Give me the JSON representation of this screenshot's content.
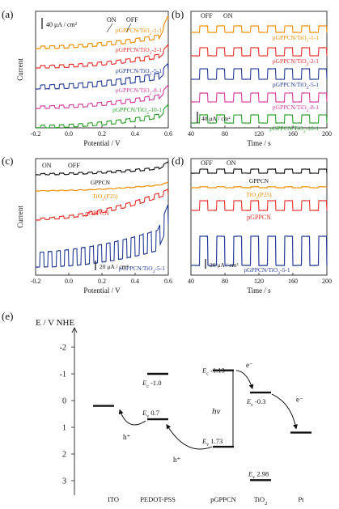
{
  "figure": {
    "panels": [
      {
        "label": "(a)"
      },
      {
        "label": "(b)"
      },
      {
        "label": "(c)"
      },
      {
        "label": "(d)"
      },
      {
        "label": "(e)"
      }
    ]
  },
  "chart_data": [
    {
      "panel": "(a)",
      "type": "line",
      "xlabel": "Potential / V",
      "ylabel": "Current",
      "xlim": [
        -0.2,
        0.6
      ],
      "xticks": [
        "-0.2",
        "0.0",
        "0.2",
        "0.4",
        "0.6"
      ],
      "scale_bar": "40 μA / cm²",
      "annotations": [
        "ON",
        "OFF"
      ],
      "series": [
        {
          "name": "pGPPCN/TiO2-1-1",
          "color": "#f08c00"
        },
        {
          "name": "pGPPCN/TiO2-2-1",
          "color": "#e8302a"
        },
        {
          "name": "pGPPCN/TiO2-5-1",
          "color": "#243c96"
        },
        {
          "name": "pGPPCN/TiO2-8-1",
          "color": "#d63c9e"
        },
        {
          "name": "pGPPCN/TiO2-10-1",
          "color": "#2aa02a"
        }
      ]
    },
    {
      "panel": "(b)",
      "type": "line",
      "xlabel": "Time / s",
      "xlim": [
        40,
        200
      ],
      "xticks": [
        "40",
        "80",
        "120",
        "160",
        "200"
      ],
      "scale_bar": "40 μA / cm²",
      "annotations": [
        "OFF",
        "ON"
      ],
      "series": [
        {
          "name": "pGPPCN/TiO2-1-1",
          "color": "#f08c00"
        },
        {
          "name": "pGPPCN/TiO2-2-1",
          "color": "#e8302a"
        },
        {
          "name": "pGPPCN/TiO2-5-1",
          "color": "#243c96"
        },
        {
          "name": "pGPPCN/TiO2-8-1",
          "color": "#d63c9e"
        },
        {
          "name": "pGPPCN/TiO2-10-1",
          "color": "#2aa02a"
        }
      ]
    },
    {
      "panel": "(c)",
      "type": "line",
      "xlabel": "Potential / V",
      "ylabel": "Current",
      "xlim": [
        -0.2,
        0.6
      ],
      "xticks": [
        "-0.2",
        "0.0",
        "0.2",
        "0.4",
        "0.6"
      ],
      "scale_bar": "20 μA / cm²",
      "annotations": [
        "ON",
        "OFF"
      ],
      "series": [
        {
          "name": "GPPCN",
          "color": "#111111"
        },
        {
          "name": "TiO2(P25)",
          "color": "#f08c00"
        },
        {
          "name": "pGPPCN",
          "color": "#e8302a"
        },
        {
          "name": "pGPPCN/TiO2-5-1",
          "color": "#243c96"
        }
      ]
    },
    {
      "panel": "(d)",
      "type": "line",
      "xlabel": "Time / s",
      "xlim": [
        40,
        200
      ],
      "xticks": [
        "40",
        "80",
        "120",
        "160",
        "200"
      ],
      "scale_bar": "20 μA / cm²",
      "annotations": [
        "OFF",
        "ON"
      ],
      "series": [
        {
          "name": "GPPCN",
          "color": "#111111"
        },
        {
          "name": "TiO2(P25)",
          "color": "#f08c00"
        },
        {
          "name": "pGPPCN",
          "color": "#e8302a"
        },
        {
          "name": "pGPPCN/TiO2-5-1",
          "color": "#243c96"
        }
      ]
    },
    {
      "panel": "(e)",
      "type": "diagram",
      "ylabel": "E / V NHE",
      "ylim": [
        -3,
        3
      ],
      "yticks": [
        "-2",
        "-1",
        "0",
        "1",
        "2",
        "3"
      ],
      "categories": [
        "ITO",
        "PEDOT-PSS",
        "pGPPCN",
        "TiO2",
        "Pt"
      ],
      "levels": [
        {
          "material": "ITO",
          "value": 0.2
        },
        {
          "material": "PEDOT-PSS",
          "band": "Ec",
          "value": -1.0,
          "label": "-1.0"
        },
        {
          "material": "PEDOT-PSS",
          "band": "Ev",
          "value": 0.7,
          "label": "0.7"
        },
        {
          "material": "pGPPCN",
          "band": "Ec",
          "value": -1.13,
          "label": "-1.13"
        },
        {
          "material": "pGPPCN",
          "band": "Ev",
          "value": 1.73,
          "label": "1.73"
        },
        {
          "material": "TiO2",
          "band": "Ec",
          "value": -0.3,
          "label": "-0.3"
        },
        {
          "material": "TiO2",
          "band": "Ev",
          "value": 2.98,
          "label": "2.98"
        },
        {
          "material": "Pt",
          "value": 1.2
        }
      ],
      "annotations": [
        "e⁻",
        "e⁻",
        "h⁺",
        "h⁺",
        "hν"
      ]
    }
  ]
}
